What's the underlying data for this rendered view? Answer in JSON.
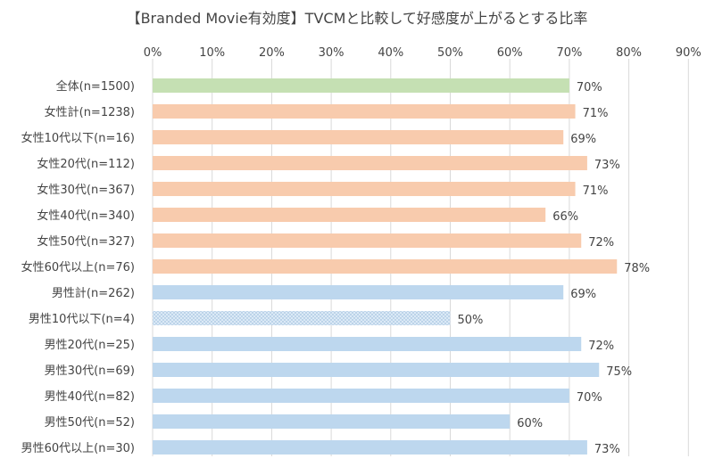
{
  "chart_data": {
    "type": "bar",
    "orientation": "horizontal",
    "title": "【Branded Movie有効度】TVCMと比較して好感度が上がるとする比率",
    "xlim": [
      0,
      90
    ],
    "x_ticks": [
      "0%",
      "10%",
      "20%",
      "30%",
      "40%",
      "50%",
      "60%",
      "70%",
      "80%",
      "90%"
    ],
    "grid": "vertical",
    "legend": "none",
    "categories": [
      "全体(n=1500)",
      "女性計(n=1238)",
      "女性10代以下(n=16)",
      "女性20代(n=112)",
      "女性30代(n=367)",
      "女性40代(n=340)",
      "女性50代(n=327)",
      "女性60代以上(n=76)",
      "男性計(n=262)",
      "男性10代以下(n=4)",
      "男性20代(n=25)",
      "男性30代(n=69)",
      "男性40代(n=82)",
      "男性50代(n=52)",
      "男性60代以上(n=30)"
    ],
    "values": [
      70,
      71,
      69,
      73,
      71,
      66,
      72,
      78,
      69,
      50,
      72,
      75,
      70,
      60,
      73
    ],
    "data_labels": [
      "70%",
      "71%",
      "69%",
      "73%",
      "71%",
      "66%",
      "72%",
      "78%",
      "69%",
      "50%",
      "72%",
      "75%",
      "70%",
      "60%",
      "73%"
    ],
    "groups": [
      "total",
      "female",
      "female",
      "female",
      "female",
      "female",
      "female",
      "female",
      "male",
      "male-small",
      "male",
      "male",
      "male",
      "male",
      "male"
    ],
    "colors": {
      "total": "#c5e0b3",
      "female": "#f8cbad",
      "male": "#bdd7ee",
      "male-small": "#dbe9f6",
      "grid": "#d9d9d9",
      "text": "#444444"
    }
  }
}
